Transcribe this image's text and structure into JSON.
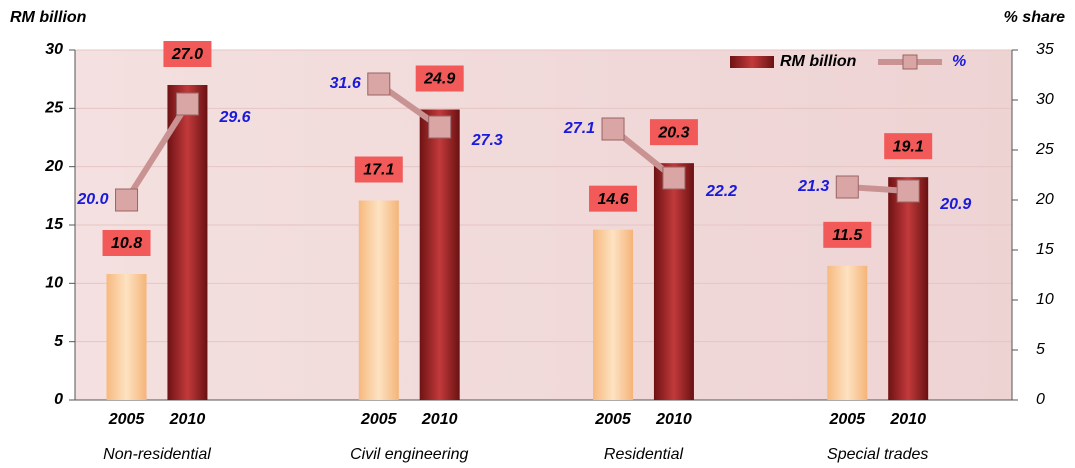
{
  "chart_data": {
    "type": "bar",
    "groups": [
      "Non-residential",
      "Civil engineering",
      "Residential",
      "Special trades"
    ],
    "years": [
      "2005",
      "2010"
    ],
    "year_colors": [
      "#fcd1a2",
      "#a3282a"
    ],
    "ylabel": "RM billion",
    "y2label": "% share",
    "ylim": [
      0,
      30
    ],
    "yticks": [
      0,
      5,
      10,
      15,
      20,
      25,
      30
    ],
    "y2lim": [
      0,
      35
    ],
    "y2ticks": [
      0,
      5,
      10,
      15,
      20,
      25,
      30,
      35
    ],
    "grid": true,
    "legend": "upper right",
    "series": [
      {
        "name": "RM billion",
        "color": "#a3282a",
        "values": [
          10.8,
          27.0,
          17.1,
          24.9,
          14.6,
          20.3,
          11.5,
          19.1
        ],
        "value_labels": [
          "10.8",
          "27.0",
          "17.1",
          "24.9",
          "14.6",
          "20.3",
          "11.5",
          "19.1"
        ]
      },
      {
        "name": "%",
        "color": "#c99393",
        "axis": "y2",
        "type": "line",
        "values": [
          20.0,
          29.6,
          31.6,
          27.3,
          27.1,
          22.2,
          21.3,
          20.9
        ],
        "value_labels": [
          "20.0",
          "29.6",
          "31.6",
          "27.3",
          "27.1",
          "22.2",
          "21.3",
          "20.9"
        ]
      }
    ]
  }
}
